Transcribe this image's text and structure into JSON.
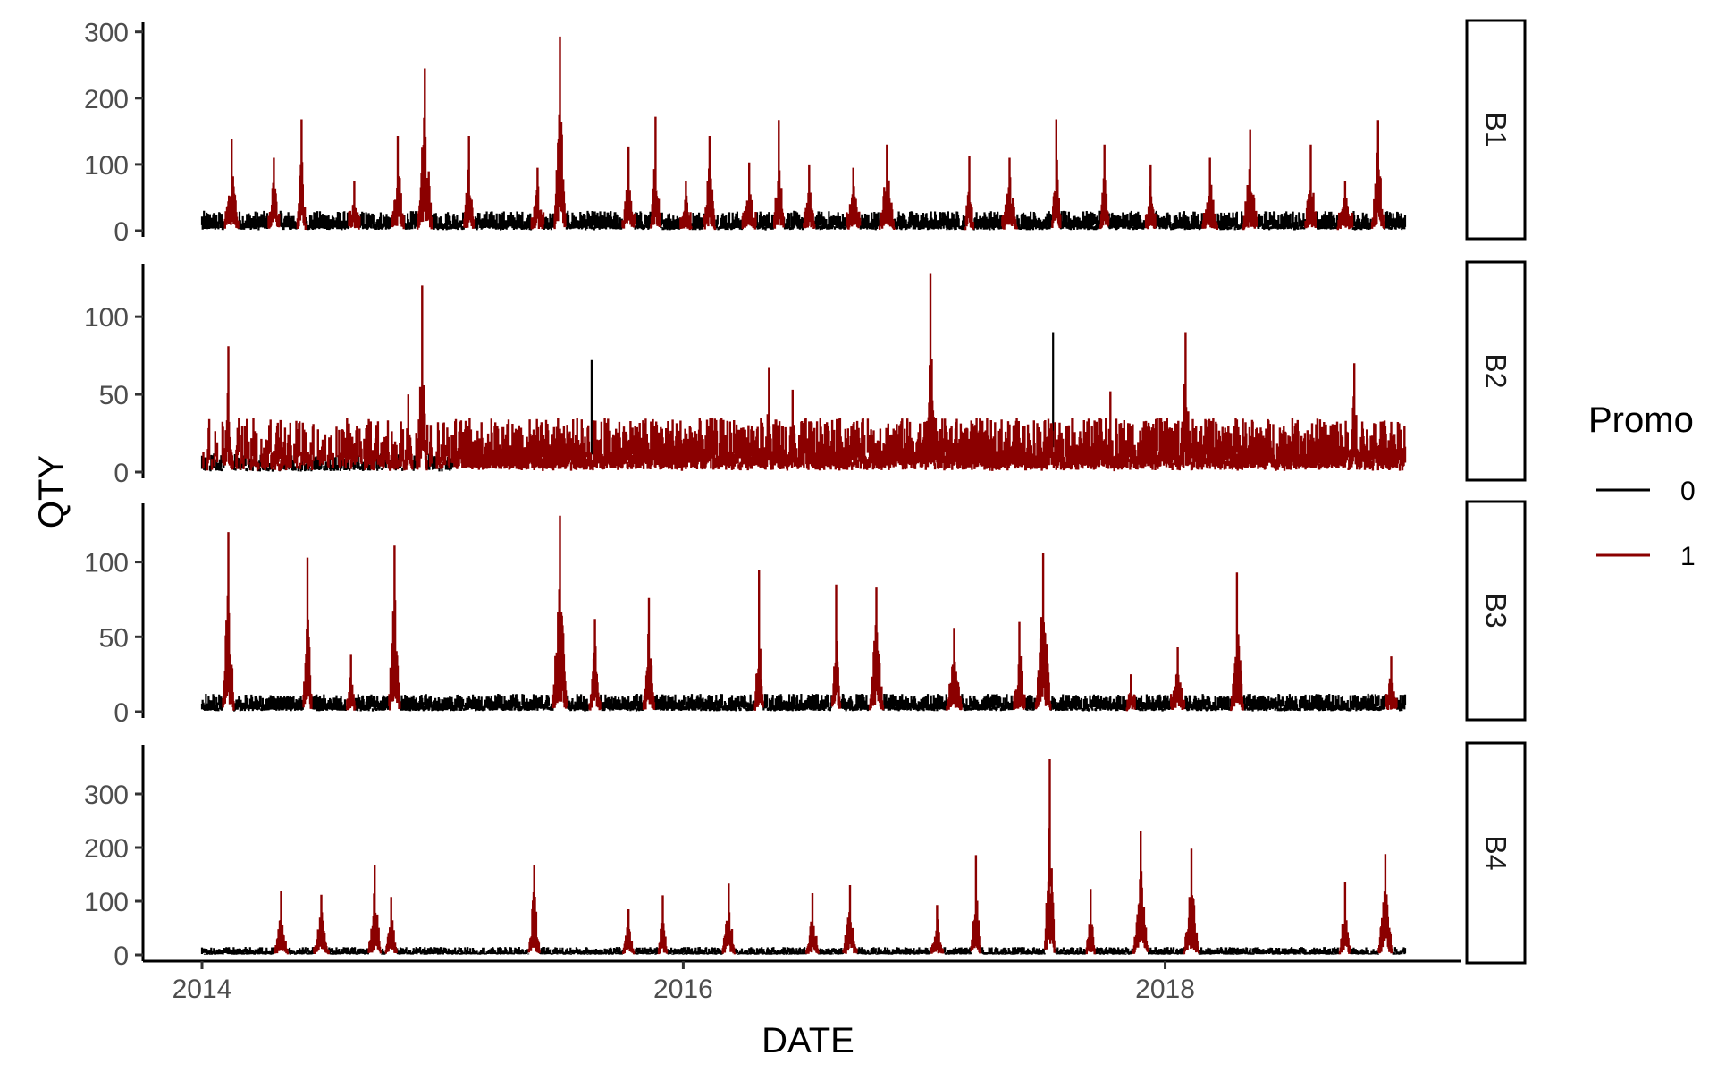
{
  "colors": {
    "promo_0": "#000000",
    "promo_1": "#8b0000",
    "axis": "#000000",
    "tick_text": "#4d4d4d"
  },
  "chart_data": {
    "type": "line",
    "xlabel": "DATE",
    "ylabel": "QTY",
    "x_range": [
      "2014-01-01",
      "2018-12-31"
    ],
    "x_ticks": [
      "2014",
      "2016",
      "2018"
    ],
    "grid": false,
    "legend": {
      "title": "Promo",
      "position": "right",
      "entries": [
        {
          "label": "0",
          "color": "#000000"
        },
        {
          "label": "1",
          "color": "#8b0000"
        }
      ]
    },
    "facets": [
      {
        "label": "B1",
        "ylim": [
          0,
          305
        ],
        "y_ticks": [
          0,
          100,
          200,
          300
        ],
        "y_tick_labels": [
          "0",
          "100",
          "200",
          "300"
        ],
        "series": [
          {
            "name": "0",
            "baseline_range": [
              5,
              30
            ]
          },
          {
            "name": "1",
            "peaks": [
              {
                "date": "2014-02-15",
                "value": 138
              },
              {
                "date": "2014-04-20",
                "value": 110
              },
              {
                "date": "2014-06-01",
                "value": 168
              },
              {
                "date": "2014-08-20",
                "value": 75
              },
              {
                "date": "2014-10-25",
                "value": 143
              },
              {
                "date": "2014-12-05",
                "value": 245
              },
              {
                "date": "2015-02-10",
                "value": 143
              },
              {
                "date": "2015-05-25",
                "value": 95
              },
              {
                "date": "2015-06-28",
                "value": 293
              },
              {
                "date": "2015-10-10",
                "value": 127
              },
              {
                "date": "2015-11-20",
                "value": 172
              },
              {
                "date": "2016-01-05",
                "value": 75
              },
              {
                "date": "2016-02-10",
                "value": 143
              },
              {
                "date": "2016-04-10",
                "value": 103
              },
              {
                "date": "2016-05-25",
                "value": 167
              },
              {
                "date": "2016-07-10",
                "value": 100
              },
              {
                "date": "2016-09-15",
                "value": 95
              },
              {
                "date": "2016-11-05",
                "value": 130
              },
              {
                "date": "2017-03-10",
                "value": 113
              },
              {
                "date": "2017-05-10",
                "value": 110
              },
              {
                "date": "2017-07-20",
                "value": 168
              },
              {
                "date": "2017-10-01",
                "value": 130
              },
              {
                "date": "2017-12-10",
                "value": 100
              },
              {
                "date": "2018-03-10",
                "value": 110
              },
              {
                "date": "2018-05-10",
                "value": 153
              },
              {
                "date": "2018-08-10",
                "value": 130
              },
              {
                "date": "2018-10-01",
                "value": 75
              },
              {
                "date": "2018-11-20",
                "value": 167
              }
            ]
          }
        ]
      },
      {
        "label": "B2",
        "ylim": [
          0,
          130
        ],
        "y_ticks": [
          0,
          50,
          100
        ],
        "y_tick_labels": [
          "0",
          "50",
          "100"
        ],
        "series": [
          {
            "name": "0",
            "peaks": [
              {
                "date": "2015-08-15",
                "value": 72
              },
              {
                "date": "2017-07-15",
                "value": 90
              }
            ],
            "baseline_range": [
              2,
              12
            ]
          },
          {
            "name": "1",
            "peaks": [
              {
                "date": "2014-02-10",
                "value": 81
              },
              {
                "date": "2014-12-01",
                "value": 120
              },
              {
                "date": "2014-11-10",
                "value": 50
              },
              {
                "date": "2016-05-10",
                "value": 67
              },
              {
                "date": "2016-06-15",
                "value": 53
              },
              {
                "date": "2017-01-10",
                "value": 128
              },
              {
                "date": "2018-02-01",
                "value": 90
              },
              {
                "date": "2018-10-15",
                "value": 70
              },
              {
                "date": "2017-10-10",
                "value": 52
              }
            ],
            "baseline_range": [
              5,
              35
            ]
          }
        ]
      },
      {
        "label": "B3",
        "ylim": [
          0,
          135
        ],
        "y_ticks": [
          0,
          50,
          100
        ],
        "y_tick_labels": [
          "0",
          "50",
          "100"
        ],
        "series": [
          {
            "name": "0",
            "baseline_range": [
              2,
              12
            ]
          },
          {
            "name": "1",
            "peaks": [
              {
                "date": "2014-02-10",
                "value": 120
              },
              {
                "date": "2014-06-10",
                "value": 103
              },
              {
                "date": "2014-08-15",
                "value": 38
              },
              {
                "date": "2014-10-20",
                "value": 111
              },
              {
                "date": "2015-06-28",
                "value": 131
              },
              {
                "date": "2015-08-20",
                "value": 62
              },
              {
                "date": "2015-11-10",
                "value": 76
              },
              {
                "date": "2016-04-25",
                "value": 95
              },
              {
                "date": "2016-08-20",
                "value": 85
              },
              {
                "date": "2016-10-20",
                "value": 83
              },
              {
                "date": "2017-02-15",
                "value": 56
              },
              {
                "date": "2017-05-25",
                "value": 60
              },
              {
                "date": "2017-06-30",
                "value": 106
              },
              {
                "date": "2017-11-10",
                "value": 25
              },
              {
                "date": "2018-01-20",
                "value": 43
              },
              {
                "date": "2018-04-20",
                "value": 93
              },
              {
                "date": "2018-12-10",
                "value": 37
              }
            ]
          }
        ]
      },
      {
        "label": "B4",
        "ylim": [
          0,
          380
        ],
        "y_ticks": [
          0,
          100,
          200,
          300
        ],
        "y_tick_labels": [
          "0",
          "100",
          "200",
          "300"
        ],
        "series": [
          {
            "name": "0",
            "baseline_range": [
              2,
              15
            ]
          },
          {
            "name": "1",
            "peaks": [
              {
                "date": "2014-05-01",
                "value": 120
              },
              {
                "date": "2014-07-01",
                "value": 112
              },
              {
                "date": "2014-09-20",
                "value": 168
              },
              {
                "date": "2014-10-15",
                "value": 108
              },
              {
                "date": "2015-05-20",
                "value": 167
              },
              {
                "date": "2015-10-10",
                "value": 85
              },
              {
                "date": "2015-12-01",
                "value": 111
              },
              {
                "date": "2016-03-10",
                "value": 133
              },
              {
                "date": "2016-07-15",
                "value": 115
              },
              {
                "date": "2016-09-10",
                "value": 130
              },
              {
                "date": "2017-01-20",
                "value": 93
              },
              {
                "date": "2017-03-20",
                "value": 186
              },
              {
                "date": "2017-07-10",
                "value": 365
              },
              {
                "date": "2017-09-10",
                "value": 123
              },
              {
                "date": "2017-11-25",
                "value": 230
              },
              {
                "date": "2018-02-10",
                "value": 198
              },
              {
                "date": "2018-10-01",
                "value": 135
              },
              {
                "date": "2018-12-01",
                "value": 188
              }
            ]
          }
        ]
      }
    ]
  }
}
